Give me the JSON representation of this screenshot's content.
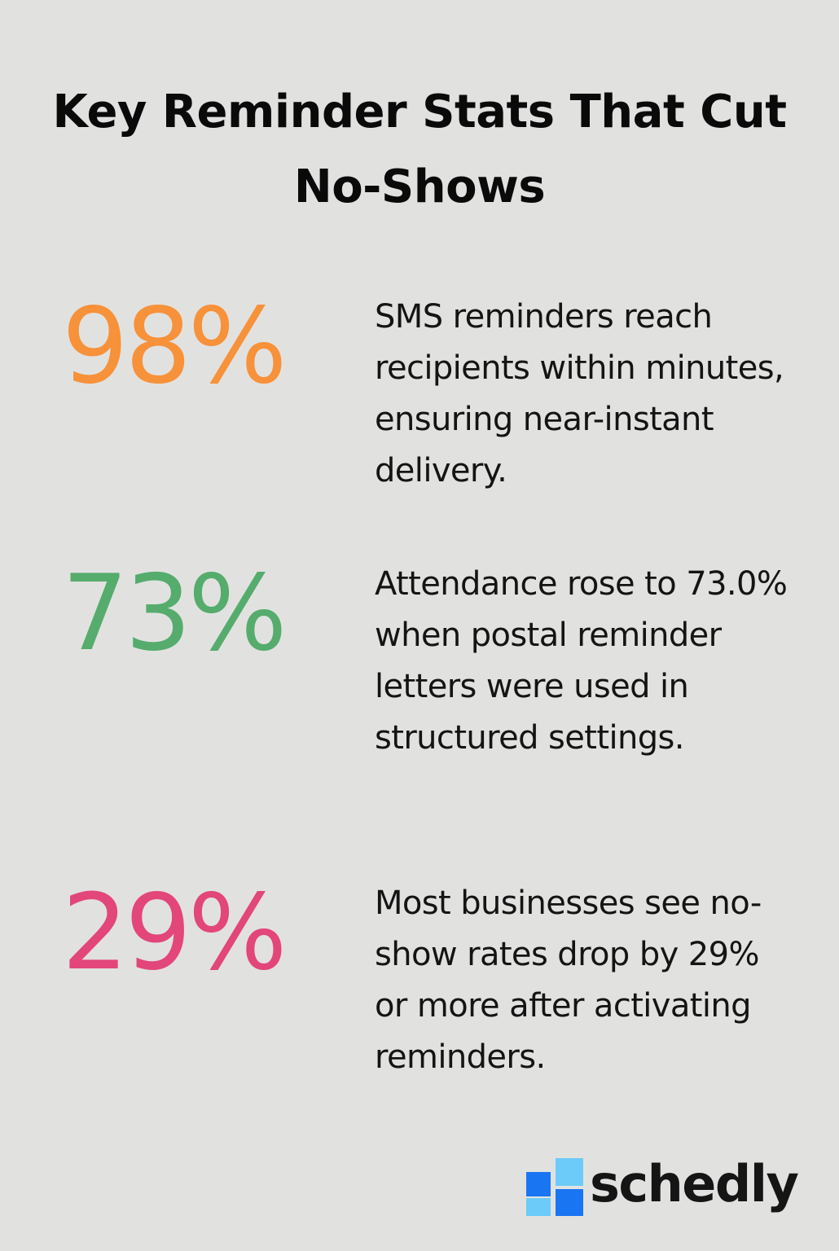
{
  "title": "Key Reminder Stats That Cut No-Shows",
  "stats": [
    {
      "value": "98%",
      "color": "#f7913a",
      "description": "SMS reminders reach recipients within minutes, ensuring near-instant delivery."
    },
    {
      "value": "73%",
      "color": "#55ac6c",
      "description": "Attendance rose to 73.0% when postal reminder letters were used in structured settings."
    },
    {
      "value": "29%",
      "color": "#e2467a",
      "description": "Most businesses see no-show rates drop by 29% or more after activating reminders."
    }
  ],
  "brand": {
    "name": "schedly",
    "logo_icon": "schedly-logo-icon",
    "colors": {
      "dark_blue": "#1a75f2",
      "light_blue": "#6ccbf9"
    }
  }
}
